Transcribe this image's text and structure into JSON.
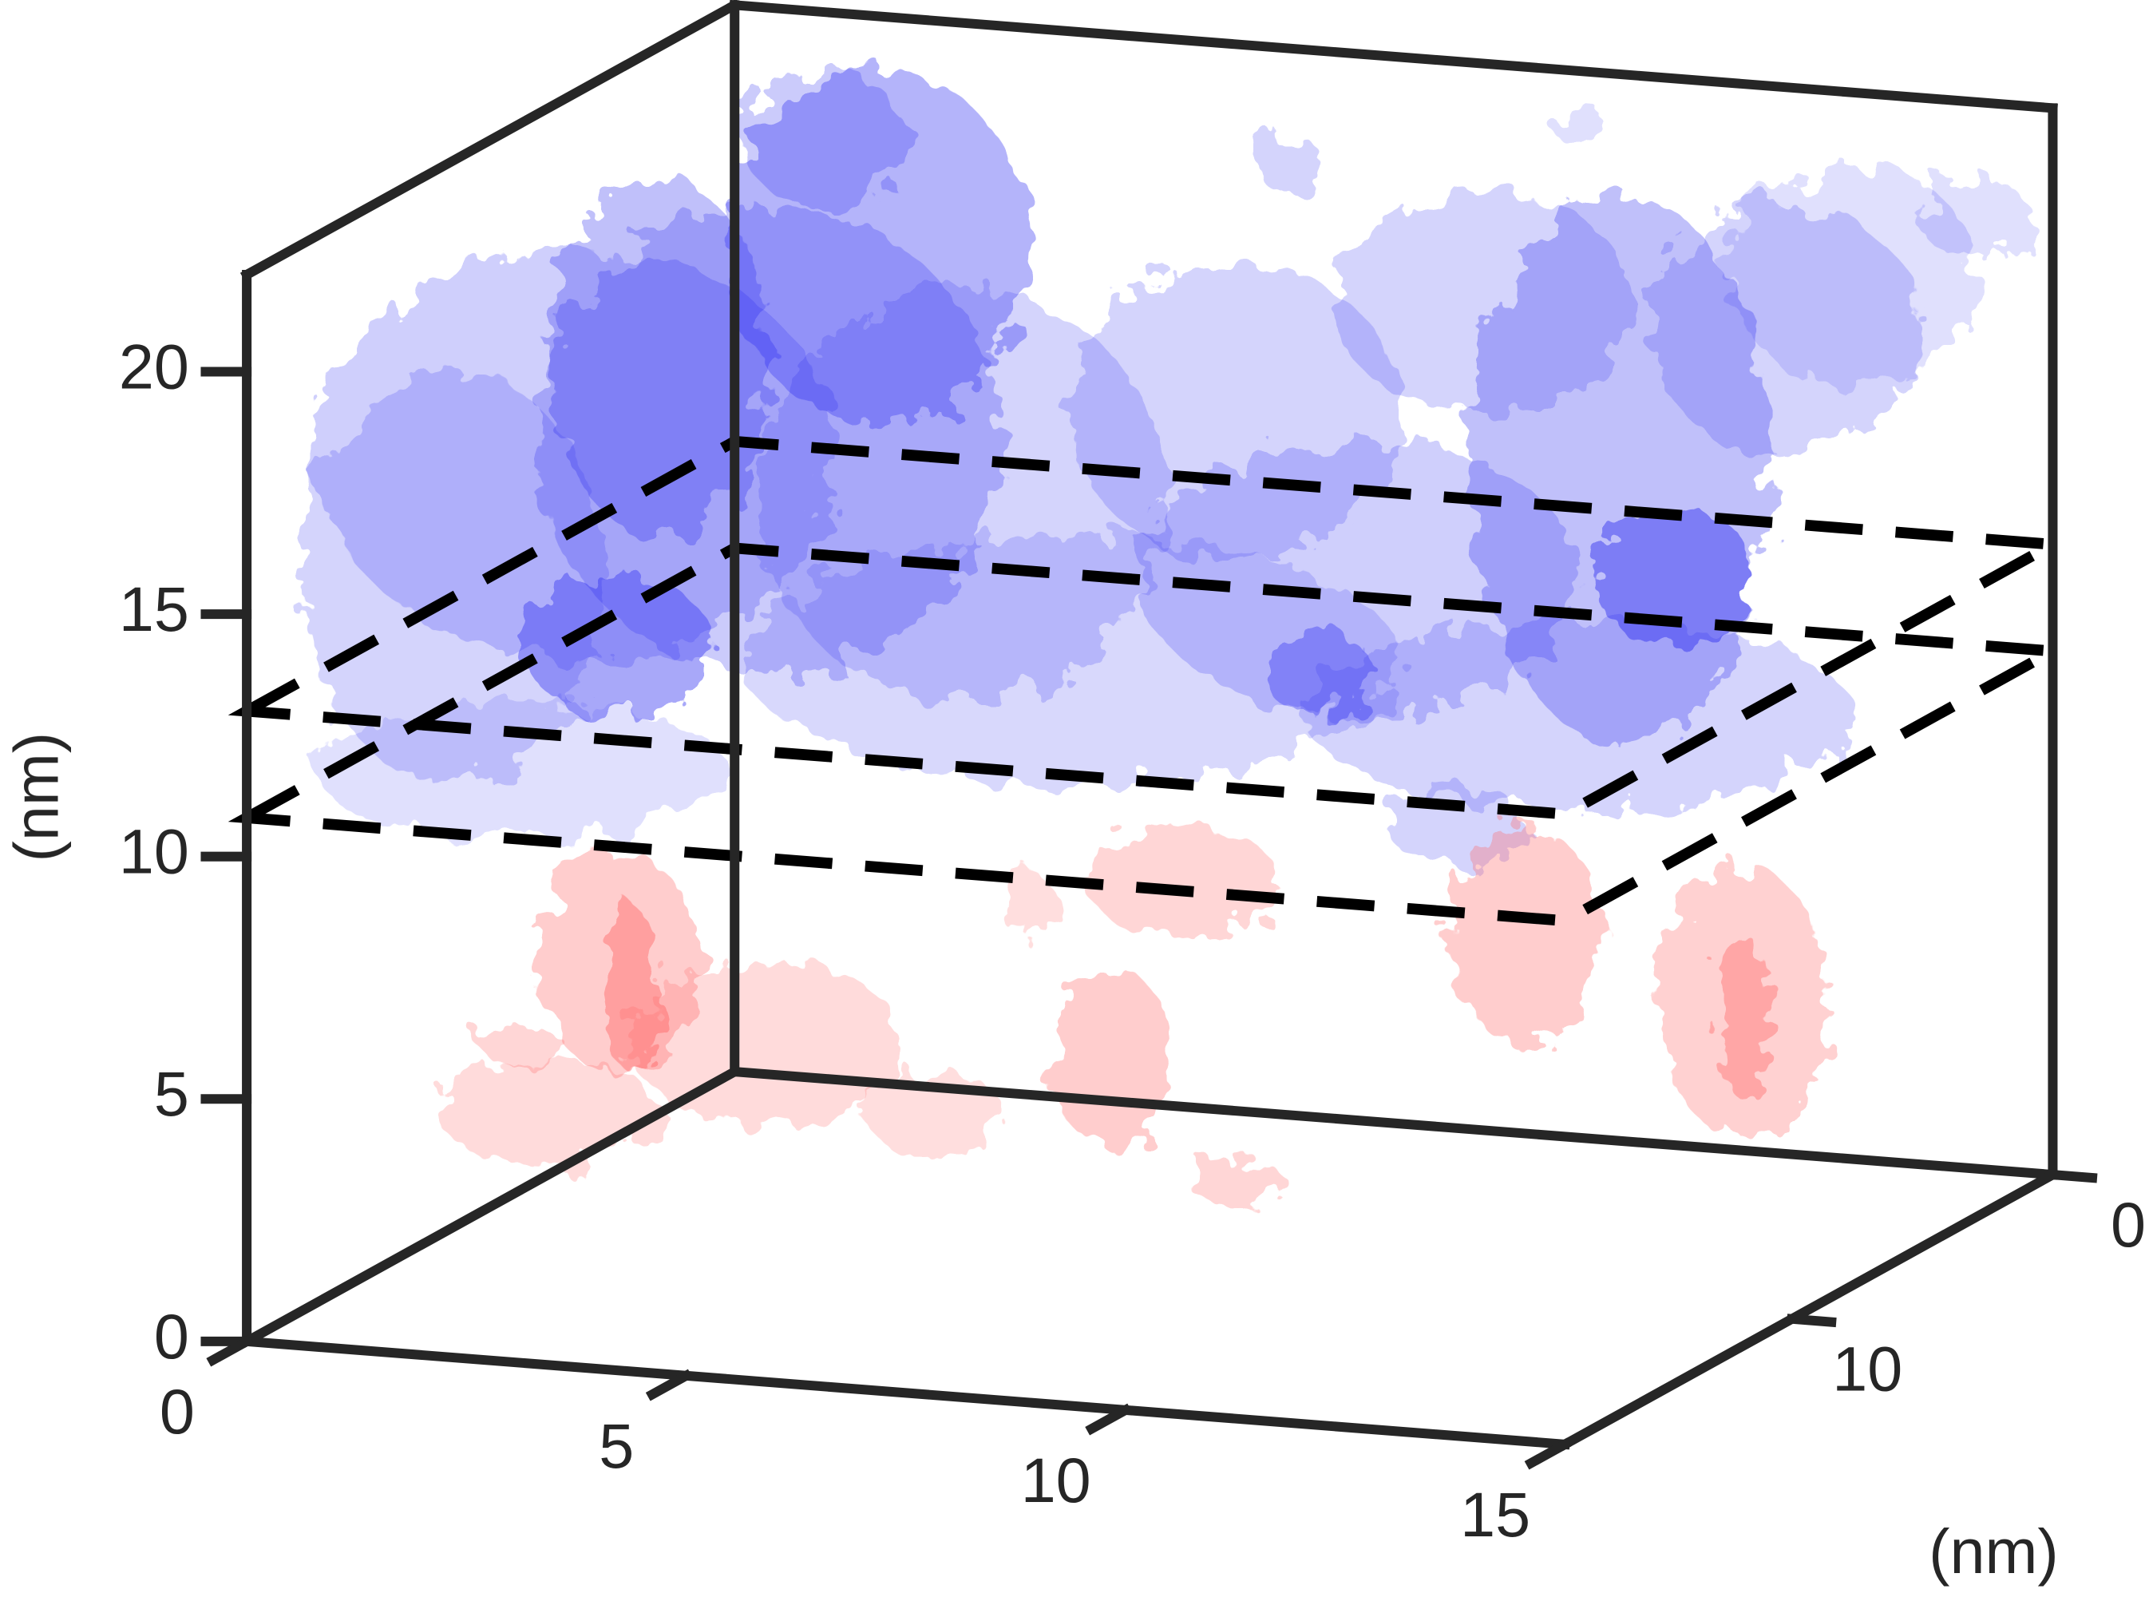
{
  "chart_data": {
    "type": "isosurface3d",
    "zlabel": "(nm)",
    "xlabel": "(nm)",
    "xlim": [
      0,
      15
    ],
    "ylim": [
      0,
      18.7
    ],
    "zlim": [
      0,
      22
    ],
    "xticks": [
      0,
      5,
      10,
      15
    ],
    "yticks": [
      0,
      10
    ],
    "zticks": [
      0,
      5,
      10,
      15,
      20
    ],
    "slice_planes_z": [
      10.8,
      13
    ],
    "isosurface_colors": [
      "#2b2bf0",
      "#ff5a5a"
    ]
  }
}
